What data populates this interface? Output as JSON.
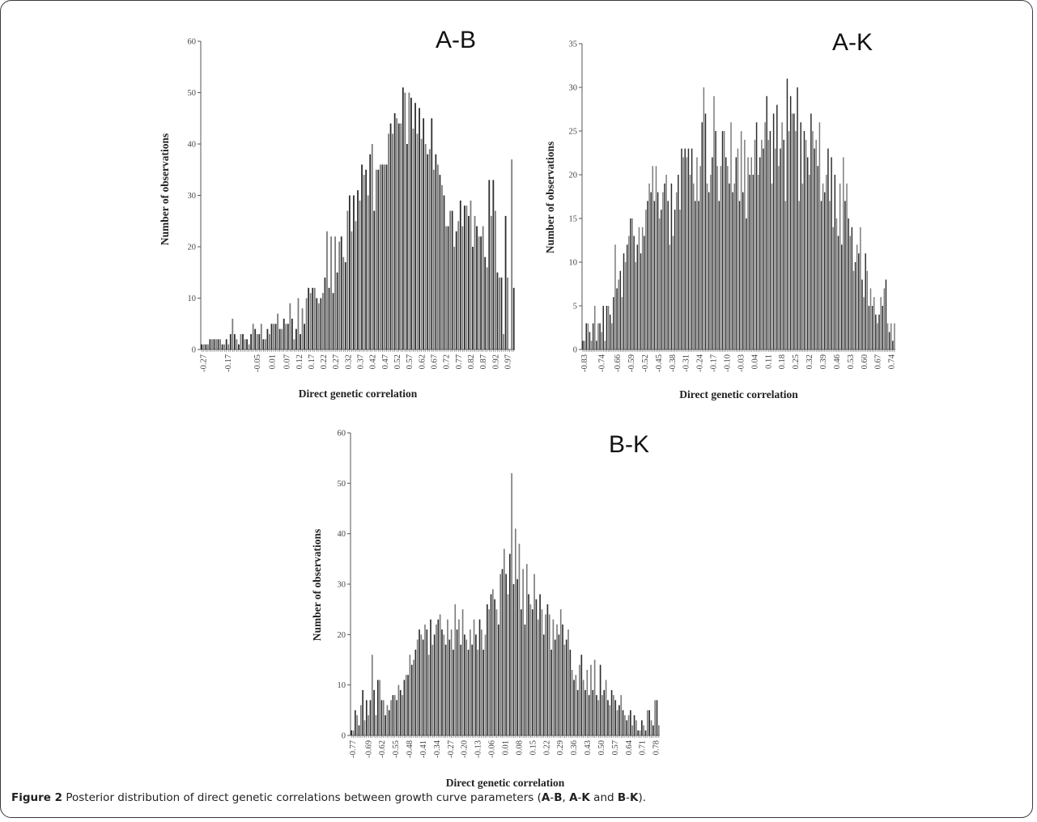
{
  "caption": {
    "label": "Figure 2",
    "text": "Posterior distribution of direct genetic correlations between growth curve parameters (",
    "p1": "A",
    "d1": "-",
    "p2": "B",
    "c1": ", ",
    "p3": "A",
    "d2": "-",
    "p4": "K",
    "c2": " and ",
    "p5": "B",
    "d3": "-",
    "p6": "K",
    "end": ")."
  },
  "chart_data": [
    {
      "type": "bar",
      "title": "A-B",
      "xlabel": "Direct genetic correlation",
      "ylabel": "Number of observations",
      "ylim": [
        0,
        60
      ],
      "yticks": [
        0,
        10,
        20,
        30,
        40,
        50,
        60
      ],
      "xrange": [
        -0.28,
        1.0
      ],
      "xticks": [
        "-0.27",
        "-0.17",
        "-0.05",
        "0.01",
        "0.07",
        "0.12",
        "0.17",
        "0.22",
        "0.27",
        "0.32",
        "0.37",
        "0.42",
        "0.47",
        "0.52",
        "0.57",
        "0.62",
        "0.67",
        "0.72",
        "0.77",
        "0.82",
        "0.87",
        "0.92",
        "0.97"
      ],
      "grid": false,
      "legend": "none",
      "values": [
        1,
        1,
        1,
        1,
        2,
        2,
        2,
        2,
        2,
        2,
        1,
        1,
        2,
        1,
        3,
        6,
        3,
        2,
        1,
        3,
        3,
        2,
        2,
        1,
        3,
        5,
        4,
        3,
        3,
        5,
        2,
        2,
        4,
        3,
        5,
        5,
        5,
        7,
        4,
        4,
        6,
        5,
        5,
        9,
        6,
        2,
        4,
        10,
        3,
        8,
        5,
        10,
        12,
        11,
        12,
        12,
        10,
        9,
        10,
        11,
        14,
        23,
        12,
        22,
        11,
        22,
        15,
        21,
        22,
        18,
        17,
        27,
        30,
        23,
        30,
        25,
        31,
        29,
        36,
        34,
        35,
        30,
        38,
        40,
        27,
        35,
        35,
        36,
        36,
        36,
        36,
        42,
        44,
        42,
        46,
        45,
        44,
        44,
        51,
        50,
        40,
        50,
        49,
        43,
        48,
        42,
        47,
        41,
        45,
        40,
        38,
        39,
        45,
        35,
        38,
        36,
        34,
        32,
        30,
        24,
        24,
        27,
        27,
        20,
        23,
        25,
        29,
        24,
        28,
        28,
        26,
        29,
        20,
        26,
        24,
        22,
        22,
        24,
        18,
        16,
        33,
        26,
        33,
        27,
        15,
        14,
        14,
        3,
        26,
        14,
        0,
        37,
        12
      ]
    },
    {
      "type": "bar",
      "title": "A-K",
      "xlabel": "Direct genetic correlation",
      "ylabel": "Number of observations",
      "ylim": [
        0,
        35
      ],
      "yticks": [
        0,
        5,
        10,
        15,
        20,
        25,
        30,
        35
      ],
      "xrange": [
        -0.84,
        0.76
      ],
      "xticks": [
        "-0.83",
        "-0.74",
        "-0.66",
        "-0.59",
        "-0.52",
        "-0.45",
        "-0.38",
        "-0.31",
        "-0.24",
        "-0.17",
        "-0.10",
        "-0.03",
        "0.04",
        "0.11",
        "0.18",
        "0.25",
        "0.32",
        "0.39",
        "0.46",
        "0.53",
        "0.60",
        "0.67",
        "0.74"
      ],
      "grid": false,
      "legend": "none",
      "values": [
        1,
        1,
        3,
        3,
        2,
        1,
        3,
        5,
        1,
        3,
        3,
        2,
        5,
        1,
        5,
        5,
        4,
        3,
        6,
        12,
        7,
        8,
        9,
        6,
        11,
        10,
        12,
        13,
        15,
        15,
        13,
        10,
        12,
        14,
        11,
        14,
        13,
        16,
        17,
        19,
        18,
        21,
        17,
        21,
        18,
        15,
        16,
        18,
        19,
        20,
        17,
        12,
        19,
        13,
        16,
        18,
        20,
        16,
        23,
        22,
        23,
        22,
        23,
        20,
        23,
        19,
        17,
        22,
        17,
        21,
        26,
        30,
        27,
        19,
        18,
        20,
        22,
        29,
        25,
        21,
        17,
        21,
        25,
        25,
        22,
        21,
        19,
        26,
        18,
        19,
        22,
        23,
        17,
        25,
        18,
        24,
        15,
        22,
        20,
        22,
        20,
        24,
        26,
        20,
        22,
        24,
        23,
        26,
        29,
        24,
        25,
        19,
        27,
        23,
        28,
        21,
        23,
        26,
        24,
        17,
        31,
        25,
        29,
        27,
        27,
        25,
        30,
        17,
        26,
        19,
        25,
        24,
        22,
        20,
        27,
        25,
        23,
        24,
        21,
        26,
        17,
        19,
        18,
        20,
        23,
        17,
        22,
        14,
        20,
        15,
        13,
        19,
        12,
        22,
        17,
        19,
        15,
        13,
        14,
        9,
        10,
        12,
        11,
        14,
        8,
        6,
        11,
        9,
        5,
        7,
        5,
        6,
        4,
        3,
        4,
        6,
        5,
        7,
        8,
        3,
        2,
        3,
        1,
        3
      ]
    },
    {
      "type": "bar",
      "title": "B-K",
      "xlabel": "Direct genetic correlation",
      "ylabel": "Number of observations",
      "ylim": [
        0,
        60
      ],
      "yticks": [
        0,
        10,
        20,
        30,
        40,
        50,
        60
      ],
      "xrange": [
        -0.78,
        0.8
      ],
      "xticks": [
        "-0.77",
        "-0.69",
        "-0.62",
        "-0.55",
        "-0.48",
        "-0.41",
        "-0.34",
        "-0.27",
        "-0.20",
        "-0.13",
        "-0.06",
        "0.01",
        "0.08",
        "0.15",
        "0.22",
        "0.29",
        "0.36",
        "0.43",
        "0.50",
        "0.57",
        "0.64",
        "0.71",
        "0.78"
      ],
      "grid": false,
      "legend": "none",
      "values": [
        1,
        1,
        5,
        4,
        2,
        6,
        9,
        3,
        7,
        4,
        7,
        16,
        9,
        4,
        11,
        11,
        7,
        7,
        4,
        6,
        5,
        7,
        8,
        8,
        7,
        10,
        9,
        8,
        11,
        12,
        12,
        16,
        14,
        15,
        17,
        19,
        21,
        20,
        19,
        22,
        21,
        16,
        23,
        18,
        20,
        22,
        23,
        24,
        21,
        20,
        18,
        23,
        19,
        21,
        17,
        26,
        21,
        23,
        18,
        25,
        20,
        19,
        17,
        21,
        18,
        23,
        20,
        17,
        23,
        21,
        17,
        20,
        26,
        25,
        28,
        29,
        27,
        25,
        22,
        32,
        33,
        37,
        32,
        28,
        36,
        52,
        30,
        41,
        31,
        38,
        25,
        33,
        22,
        34,
        28,
        26,
        25,
        32,
        27,
        23,
        28,
        25,
        20,
        24,
        26,
        24,
        17,
        23,
        19,
        22,
        20,
        25,
        22,
        18,
        19,
        21,
        17,
        13,
        11,
        12,
        9,
        14,
        16,
        11,
        9,
        13,
        8,
        14,
        9,
        15,
        8,
        7,
        14,
        8,
        9,
        11,
        7,
        6,
        9,
        8,
        7,
        5,
        6,
        8,
        5,
        4,
        3,
        4,
        5,
        2,
        4,
        3,
        1,
        1,
        3,
        2,
        1,
        5,
        5,
        3,
        2,
        7,
        7,
        2
      ]
    }
  ]
}
